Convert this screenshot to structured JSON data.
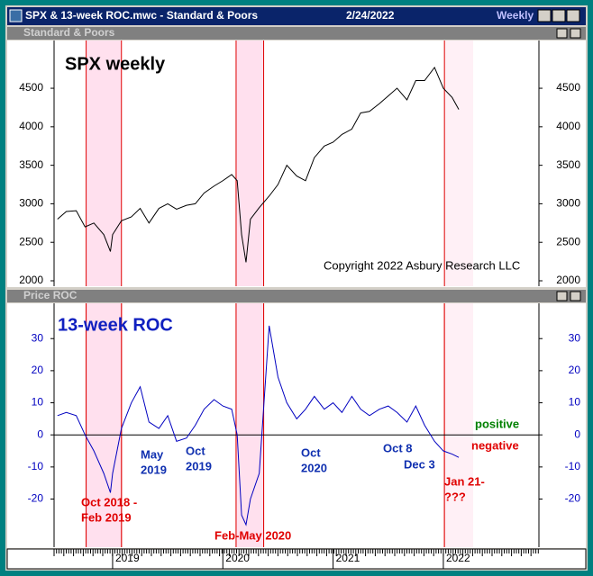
{
  "window": {
    "title": "SPX & 13-week ROC.mwc - Standard & Poors",
    "date": "2/24/2022",
    "period": "Weekly",
    "panels": [
      "Standard & Poors",
      "Price ROC"
    ]
  },
  "chart_data": [
    {
      "type": "line",
      "title": "SPX weekly",
      "annotation": "Copyright 2022 Asbury Research LLC",
      "x": [
        2018.5,
        2018.58,
        2018.67,
        2018.75,
        2018.83,
        2018.92,
        2018.98,
        2019.0,
        2019.08,
        2019.17,
        2019.25,
        2019.33,
        2019.42,
        2019.5,
        2019.58,
        2019.67,
        2019.75,
        2019.83,
        2019.92,
        2020.0,
        2020.08,
        2020.13,
        2020.17,
        2020.21,
        2020.25,
        2020.33,
        2020.42,
        2020.5,
        2020.58,
        2020.67,
        2020.75,
        2020.83,
        2020.92,
        2021.0,
        2021.08,
        2021.17,
        2021.25,
        2021.33,
        2021.42,
        2021.5,
        2021.58,
        2021.67,
        2021.75,
        2021.83,
        2021.92,
        2022.0,
        2022.08,
        2022.14
      ],
      "series": [
        {
          "name": "SPX",
          "color": "#000000",
          "values": [
            2800,
            2900,
            2910,
            2700,
            2750,
            2600,
            2380,
            2600,
            2780,
            2830,
            2940,
            2750,
            2940,
            3000,
            2930,
            2980,
            3000,
            3140,
            3230,
            3300,
            3380,
            3300,
            2600,
            2240,
            2800,
            2950,
            3100,
            3250,
            3500,
            3360,
            3300,
            3600,
            3750,
            3800,
            3900,
            3970,
            4180,
            4200,
            4300,
            4400,
            4500,
            4350,
            4600,
            4600,
            4770,
            4500,
            4380,
            4225
          ]
        }
      ],
      "xlim": [
        2018.469,
        2022.867
      ],
      "ylim": [
        1930,
        5120
      ],
      "yticks": [
        2000,
        2500,
        3000,
        3500,
        4000,
        4500
      ],
      "highlights": [
        {
          "start": 2018.76,
          "end": 2019.08,
          "closed": true
        },
        {
          "start": 2020.12,
          "end": 2020.37,
          "closed": true
        },
        {
          "start": 2022.01,
          "end": 2022.27,
          "closed": false
        }
      ]
    },
    {
      "type": "line",
      "title": "13-week ROC",
      "x": [
        2018.5,
        2018.58,
        2018.67,
        2018.75,
        2018.83,
        2018.92,
        2018.98,
        2019.0,
        2019.08,
        2019.17,
        2019.25,
        2019.33,
        2019.42,
        2019.5,
        2019.58,
        2019.67,
        2019.75,
        2019.83,
        2019.92,
        2020.0,
        2020.08,
        2020.13,
        2020.17,
        2020.21,
        2020.25,
        2020.33,
        2020.42,
        2020.5,
        2020.58,
        2020.67,
        2020.75,
        2020.83,
        2020.92,
        2021.0,
        2021.08,
        2021.17,
        2021.25,
        2021.33,
        2021.42,
        2021.5,
        2021.58,
        2021.67,
        2021.75,
        2021.83,
        2021.92,
        2022.0,
        2022.08,
        2022.14
      ],
      "series": [
        {
          "name": "ROC",
          "color": "#0000c0",
          "values": [
            6,
            7,
            6,
            0,
            -5,
            -12,
            -18,
            -12,
            2,
            10,
            15,
            4,
            2,
            6,
            -2,
            -1,
            3,
            8,
            11,
            9,
            8,
            0,
            -25,
            -28,
            -20,
            -12,
            34,
            18,
            10,
            5,
            8,
            12,
            8,
            10,
            7,
            12,
            8,
            6,
            8,
            9,
            7,
            4,
            9,
            3,
            -2,
            -5,
            -6,
            -7
          ]
        }
      ],
      "xlim": [
        2018.469,
        2022.867
      ],
      "ylim": [
        -35,
        41
      ],
      "yticks": [
        -20,
        -10,
        0,
        10,
        20,
        30
      ],
      "xticks": [
        {
          "value": 2019,
          "label": "2019"
        },
        {
          "value": 2020,
          "label": "2020"
        },
        {
          "value": 2021,
          "label": "2021"
        },
        {
          "value": 2022,
          "label": "2022"
        }
      ],
      "annotations": [
        {
          "lines": [
            "positive"
          ],
          "color": "#008000"
        },
        {
          "lines": [
            "negative"
          ],
          "color": "#e00000"
        },
        {
          "lines": [
            "May",
            "2019"
          ],
          "color": "#1030b0"
        },
        {
          "lines": [
            "Oct",
            "2019"
          ],
          "color": "#1030b0"
        },
        {
          "lines": [
            "Oct",
            "2020"
          ],
          "color": "#1030b0"
        },
        {
          "lines": [
            "Oct 8"
          ],
          "color": "#1030b0"
        },
        {
          "lines": [
            "Dec 3"
          ],
          "color": "#1030b0"
        },
        {
          "lines": [
            "Oct 2018 -",
            "Feb 2019"
          ],
          "color": "#e00000"
        },
        {
          "lines": [
            "Feb-May 2020"
          ],
          "color": "#e00000"
        },
        {
          "lines": [
            "Jan 21-",
            "???"
          ],
          "color": "#e00000"
        }
      ]
    }
  ]
}
